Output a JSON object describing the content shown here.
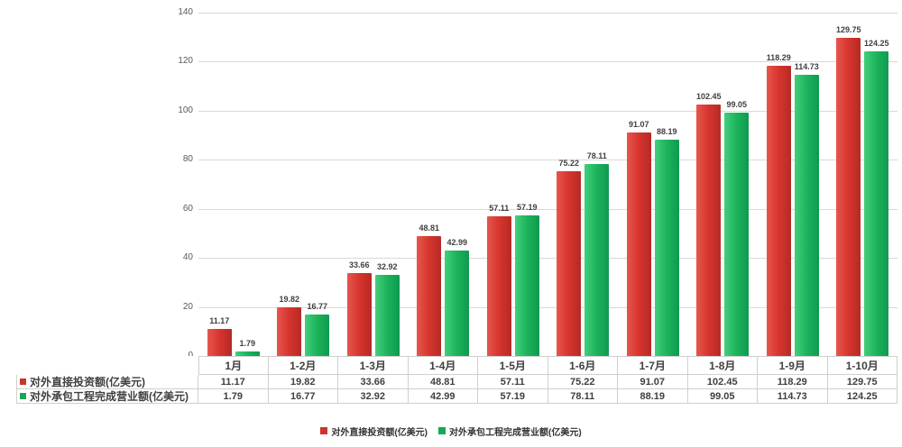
{
  "chart_data": {
    "type": "bar",
    "title": "",
    "xlabel": "",
    "ylabel": "",
    "categories": [
      "1月",
      "1-2月",
      "1-3月",
      "1-4月",
      "1-5月",
      "1-6月",
      "1-7月",
      "1-8月",
      "1-9月",
      "1-10月"
    ],
    "series": [
      {
        "name": "对外直接投资额(亿美元)",
        "color": "#cb352c",
        "gradient": [
          "#e4574e",
          "#d7342d",
          "#b52a26"
        ],
        "values": [
          11.17,
          19.82,
          33.66,
          48.81,
          57.11,
          75.22,
          91.07,
          102.45,
          118.29,
          129.75
        ]
      },
      {
        "name": "对外承包工程完成营业额(亿美元)",
        "color": "#17a757",
        "gradient": [
          "#43ce7c",
          "#1cb35c",
          "#0f9950"
        ],
        "values": [
          1.79,
          16.77,
          32.92,
          42.99,
          57.19,
          78.11,
          88.19,
          99.05,
          114.73,
          124.25
        ]
      }
    ],
    "ylim": [
      0,
      140
    ],
    "ytick_step": 20,
    "yticks": [
      "0",
      "20",
      "40",
      "60",
      "80",
      "100",
      "120",
      "140"
    ],
    "grid": true,
    "legend_position": "bottom",
    "show_data_labels": true,
    "show_data_table": true
  },
  "colors": {
    "background": "#ffffff",
    "grid_line": "#d9d9d9",
    "table_border": "#cfcfcf",
    "axis_label": "#595959",
    "data_label": "#3f3f3f",
    "table_text": "#404040"
  }
}
